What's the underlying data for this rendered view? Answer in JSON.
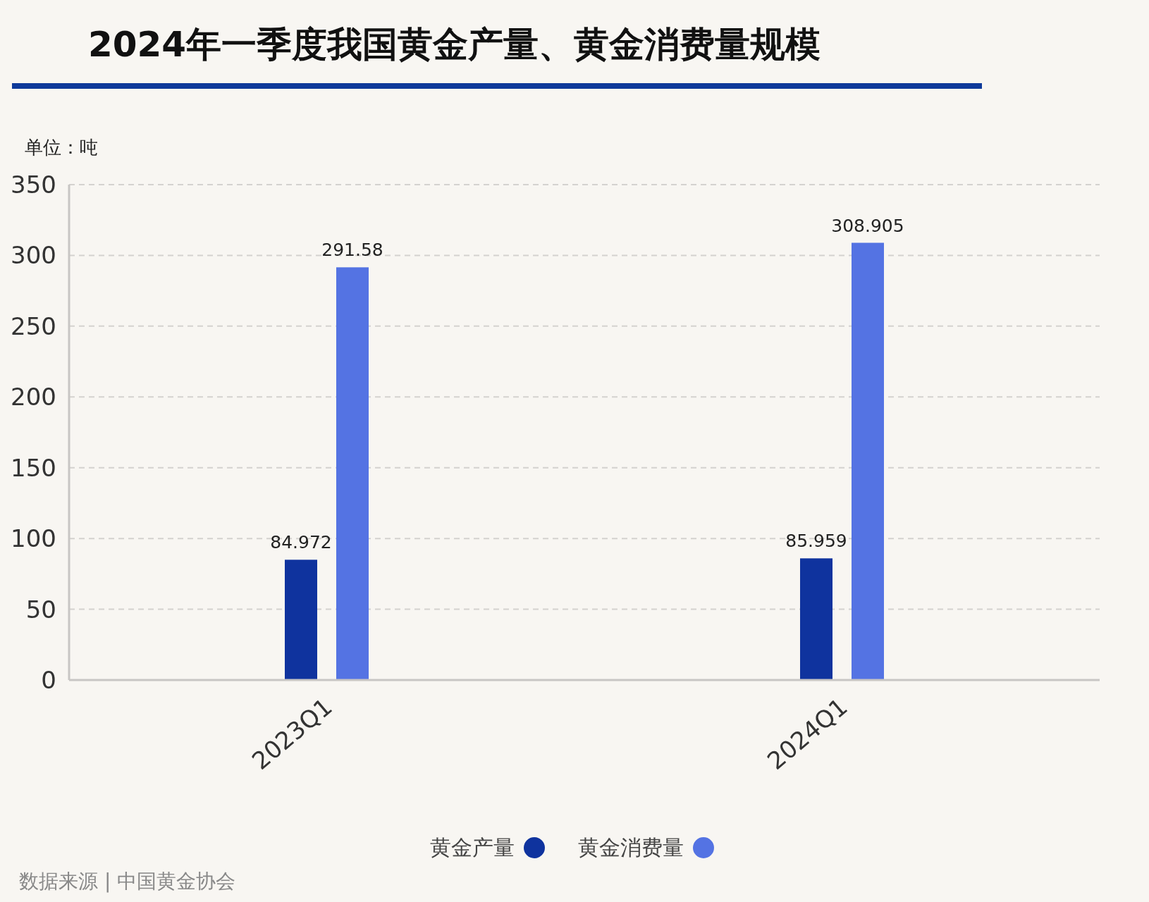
{
  "chart_data": {
    "type": "bar",
    "title": "2024年一季度我国黄金产量、黄金消费量规模",
    "ylabel": "单位：吨",
    "categories": [
      "2023Q1",
      "2024Q1"
    ],
    "series": [
      {
        "name": "黄金产量",
        "color": "#0f339e",
        "values": [
          84.972,
          85.959
        ]
      },
      {
        "name": "黄金消费量",
        "color": "#5473e3",
        "values": [
          291.58,
          308.905
        ]
      }
    ],
    "ylim": [
      0,
      350
    ],
    "yticks": [
      0,
      50,
      100,
      150,
      200,
      250,
      300,
      350
    ],
    "grid": "y",
    "legend": "bottom",
    "data_labels": true,
    "annotations": [
      "数据来源 | 中国黄金协会"
    ]
  }
}
